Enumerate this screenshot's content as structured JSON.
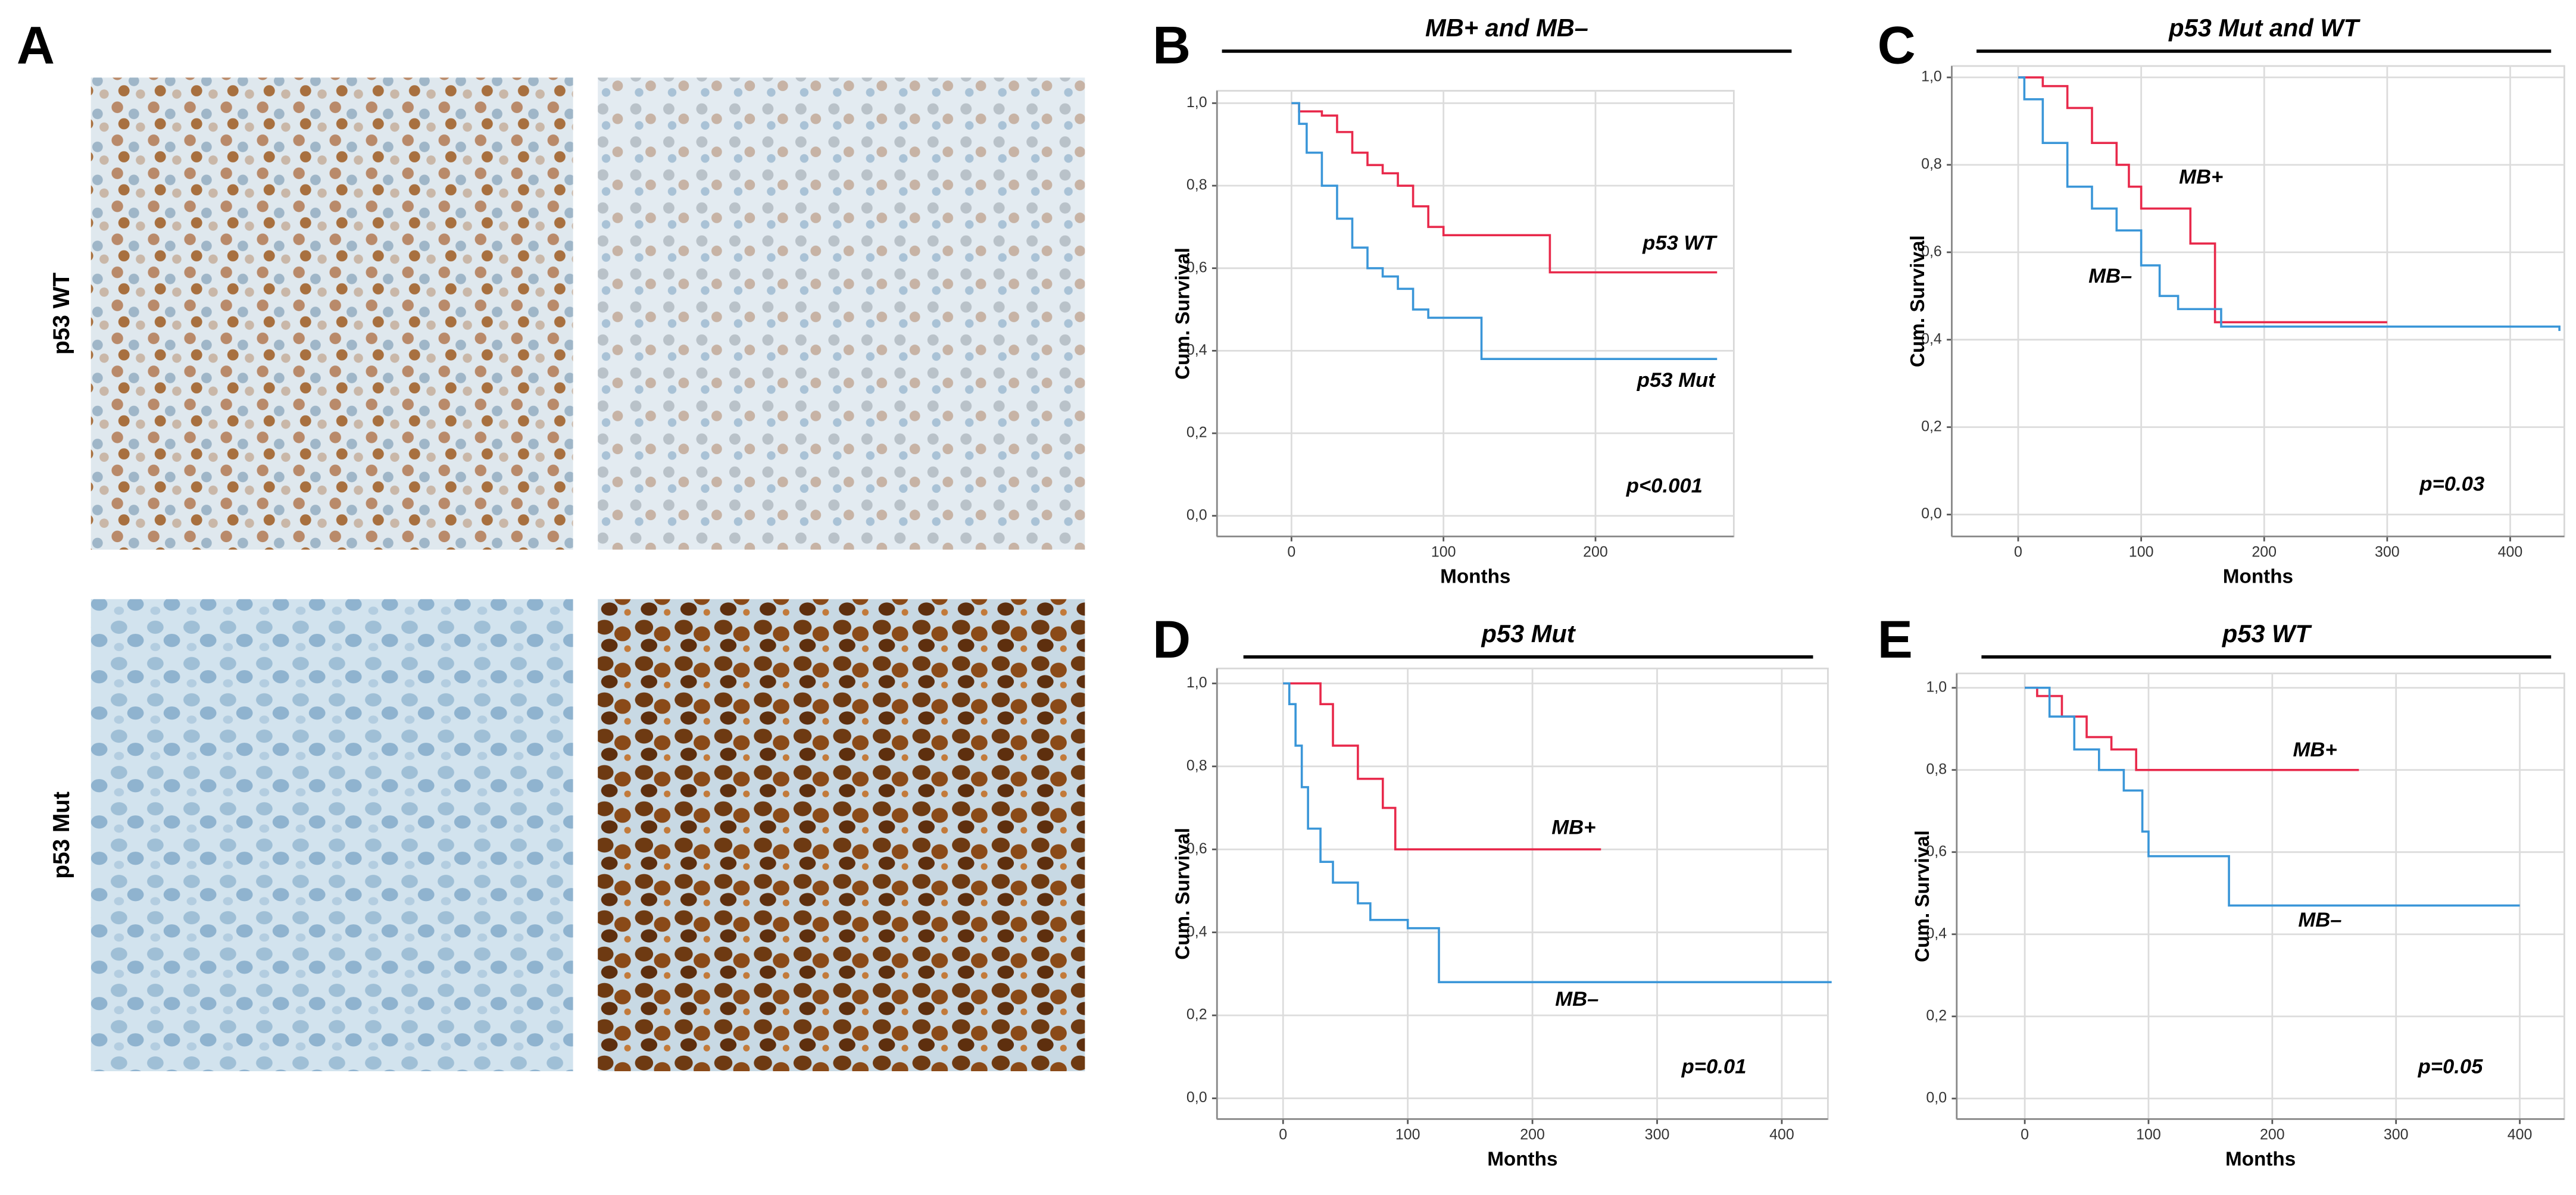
{
  "panel_labels": [
    "A",
    "B",
    "C",
    "D",
    "E"
  ],
  "image_row_labels": [
    "p53 WT",
    "p53 Mut"
  ],
  "chart_data": [
    {
      "type": "line",
      "drawstyle": "steps-post",
      "title": "MB+ and MB–",
      "xlabel": "Months",
      "ylabel": "Cum. Survival",
      "annotation": "p<0.001",
      "xlim": [
        -49,
        291
      ],
      "ylim": [
        -0.05,
        1.03
      ],
      "xticks": [
        0,
        100,
        200
      ],
      "yticks": [
        {
          "value": 0,
          "label": "0,0"
        },
        {
          "value": 0.2,
          "label": "0,2"
        },
        {
          "value": 0.4,
          "label": "0,4"
        },
        {
          "value": 0.6,
          "label": "0,6"
        },
        {
          "value": 0.8,
          "label": "0,8"
        },
        {
          "value": 1,
          "label": "1,0"
        }
      ],
      "grid": true,
      "series": [
        {
          "name": "p53 WT",
          "color": "#e8294b",
          "x": [
            0,
            5,
            20,
            30,
            40,
            50,
            60,
            70,
            80,
            90,
            100,
            130,
            170,
            280
          ],
          "values": [
            1.0,
            0.98,
            0.97,
            0.93,
            0.88,
            0.85,
            0.83,
            0.8,
            0.75,
            0.7,
            0.68,
            0.68,
            0.59,
            0.59
          ]
        },
        {
          "name": "p53 Mut",
          "color": "#3a96d8",
          "x": [
            0,
            5,
            10,
            20,
            30,
            40,
            50,
            60,
            70,
            80,
            90,
            125,
            280
          ],
          "values": [
            1.0,
            0.95,
            0.88,
            0.8,
            0.72,
            0.65,
            0.6,
            0.58,
            0.55,
            0.5,
            0.48,
            0.38,
            0.38
          ]
        }
      ]
    },
    {
      "type": "line",
      "drawstyle": "steps-post",
      "title": "p53 Mut and WT",
      "xlabel": "Months",
      "ylabel": "Cum. Survival",
      "annotation": "p=0.03",
      "xlim": [
        -54,
        444
      ],
      "ylim": [
        -0.05,
        1.026
      ],
      "xticks": [
        0,
        100,
        200,
        300,
        400
      ],
      "yticks": [
        {
          "value": 0,
          "label": "0,0"
        },
        {
          "value": 0.2,
          "label": "0,2"
        },
        {
          "value": 0.4,
          "label": "0,4"
        },
        {
          "value": 0.6,
          "label": "0,6"
        },
        {
          "value": 0.8,
          "label": "0,8"
        },
        {
          "value": 1,
          "label": "1,0"
        }
      ],
      "grid": true,
      "series": [
        {
          "name": "MB+",
          "color": "#e8294b",
          "x": [
            0,
            20,
            40,
            60,
            80,
            90,
            100,
            130,
            140,
            160,
            300
          ],
          "values": [
            1.0,
            0.98,
            0.93,
            0.85,
            0.8,
            0.75,
            0.7,
            0.7,
            0.62,
            0.44,
            0.44
          ]
        },
        {
          "name": "MB–",
          "color": "#3a96d8",
          "x": [
            0,
            5,
            20,
            40,
            60,
            80,
            100,
            115,
            130,
            165,
            440
          ],
          "values": [
            1.0,
            0.95,
            0.85,
            0.75,
            0.7,
            0.65,
            0.57,
            0.5,
            0.47,
            0.43,
            0.42
          ]
        }
      ]
    },
    {
      "type": "line",
      "drawstyle": "steps-post",
      "title": "p53 Mut",
      "xlabel": "Months",
      "ylabel": "Cum. Survival",
      "annotation": "p=0.01",
      "xlim": [
        -53,
        437
      ],
      "ylim": [
        -0.05,
        1.036
      ],
      "xticks": [
        0,
        100,
        200,
        300,
        400
      ],
      "yticks": [
        {
          "value": 0,
          "label": "0,0"
        },
        {
          "value": 0.2,
          "label": "0,2"
        },
        {
          "value": 0.4,
          "label": "0,4"
        },
        {
          "value": 0.6,
          "label": "0,6"
        },
        {
          "value": 0.8,
          "label": "0,8"
        },
        {
          "value": 1,
          "label": "1,0"
        }
      ],
      "grid": true,
      "series": [
        {
          "name": "MB+",
          "color": "#e8294b",
          "x": [
            0,
            30,
            40,
            60,
            80,
            90,
            255
          ],
          "values": [
            1.0,
            0.95,
            0.85,
            0.77,
            0.7,
            0.6,
            0.6
          ]
        },
        {
          "name": "MB–",
          "color": "#3a96d8",
          "x": [
            0,
            5,
            10,
            15,
            20,
            30,
            40,
            60,
            70,
            100,
            125,
            440
          ],
          "values": [
            1.0,
            0.95,
            0.85,
            0.75,
            0.65,
            0.57,
            0.52,
            0.47,
            0.43,
            0.41,
            0.28,
            0.28
          ]
        }
      ]
    },
    {
      "type": "line",
      "drawstyle": "steps-post",
      "title": "p53 WT",
      "xlabel": "Months",
      "ylabel": "Cum. Survival",
      "annotation": "p=0.05",
      "xlim": [
        -55,
        436
      ],
      "ylim": [
        -0.05,
        1.035
      ],
      "xticks": [
        0,
        100,
        200,
        300,
        400
      ],
      "yticks": [
        {
          "value": 0,
          "label": "0,0"
        },
        {
          "value": 0.2,
          "label": "0,2"
        },
        {
          "value": 0.4,
          "label": "0,4"
        },
        {
          "value": 0.6,
          "label": "0,6"
        },
        {
          "value": 0.8,
          "label": "0,8"
        },
        {
          "value": 1,
          "label": "1,0"
        }
      ],
      "grid": true,
      "series": [
        {
          "name": "MB+",
          "color": "#e8294b",
          "x": [
            0,
            10,
            30,
            50,
            70,
            90,
            270
          ],
          "values": [
            1.0,
            0.98,
            0.93,
            0.88,
            0.85,
            0.8,
            0.8
          ]
        },
        {
          "name": "MB–",
          "color": "#3a96d8",
          "x": [
            0,
            20,
            40,
            60,
            80,
            95,
            100,
            125,
            165,
            400
          ],
          "values": [
            1.0,
            0.93,
            0.85,
            0.8,
            0.75,
            0.65,
            0.59,
            0.59,
            0.47,
            0.47
          ]
        }
      ]
    }
  ]
}
